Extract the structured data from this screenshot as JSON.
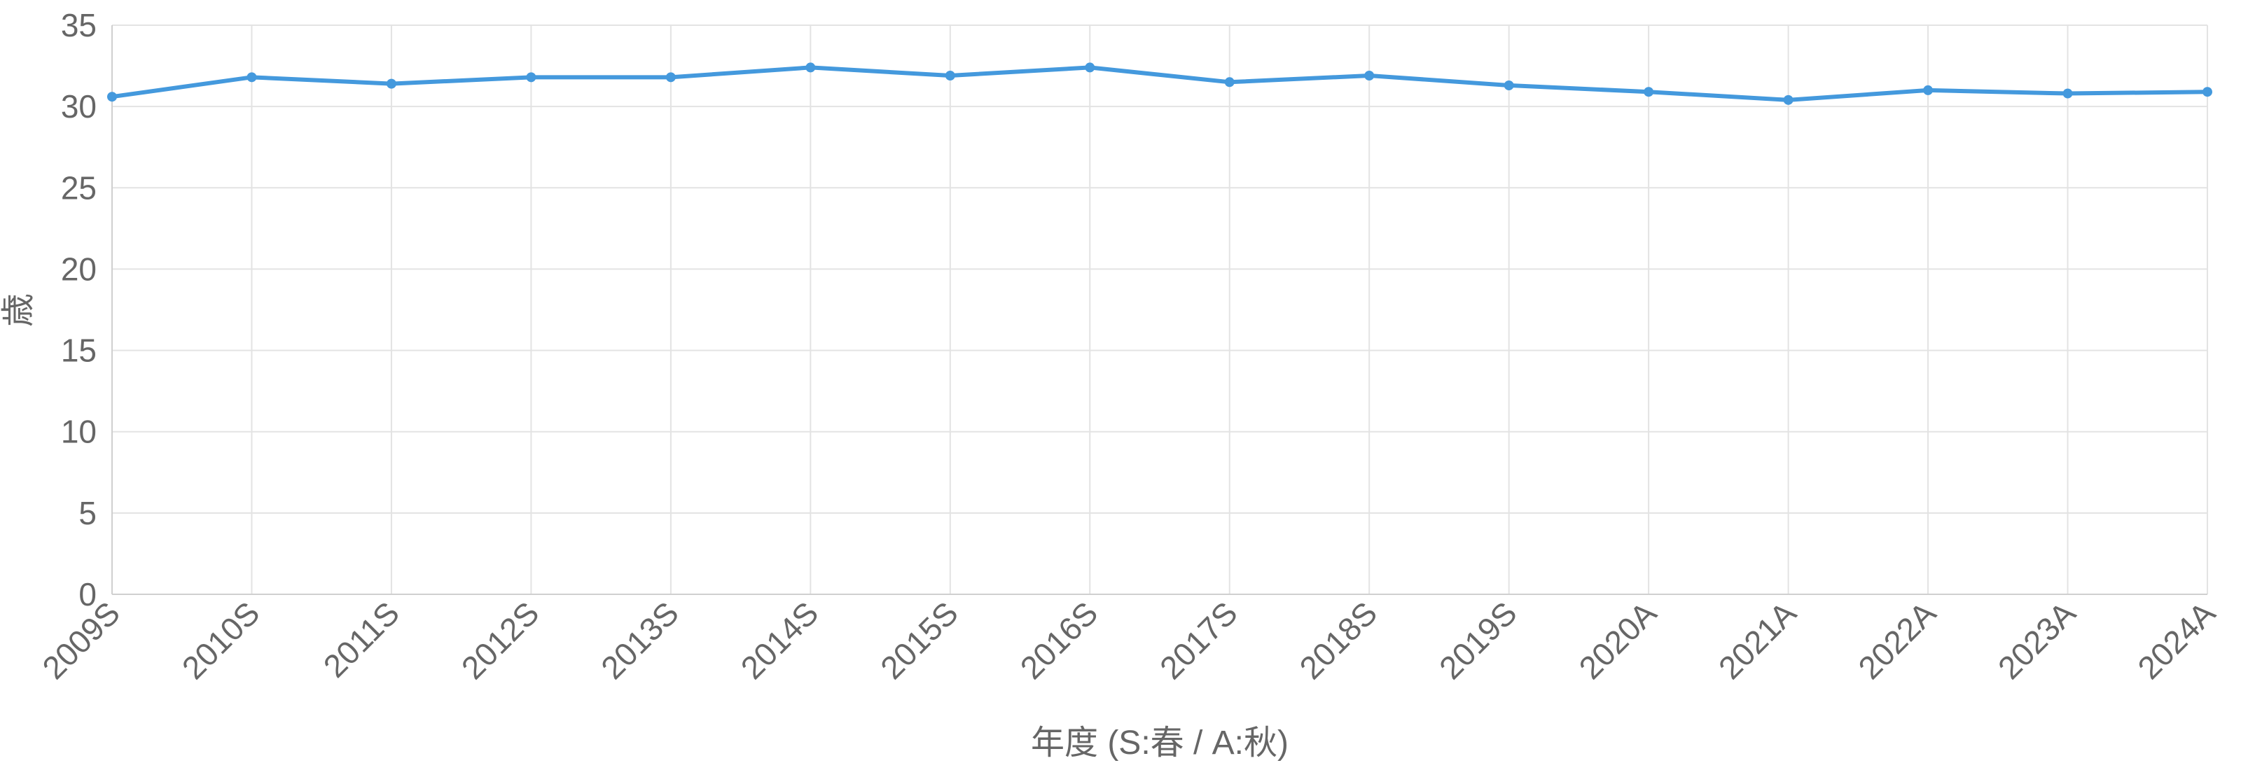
{
  "chart_data": {
    "type": "line",
    "title": "",
    "xlabel": "年度 (S:春 / A:秋)",
    "ylabel": "歳",
    "categories": [
      "2009S",
      "2010S",
      "2011S",
      "2012S",
      "2013S",
      "2014S",
      "2015S",
      "2016S",
      "2017S",
      "2018S",
      "2019S",
      "2020A",
      "2021A",
      "2022A",
      "2023A",
      "2024A"
    ],
    "series": [
      {
        "name": "",
        "values": [
          30.6,
          31.8,
          31.4,
          31.8,
          31.8,
          32.4,
          31.9,
          32.4,
          31.5,
          31.9,
          31.3,
          30.9,
          30.4,
          31.0,
          30.8,
          30.9
        ]
      }
    ],
    "ylim": [
      0,
      35
    ],
    "yticks": [
      0,
      5,
      10,
      15,
      20,
      25,
      30,
      35
    ],
    "grid": true,
    "legend": "none",
    "colors": {
      "series": "#4499dd",
      "grid": "#e3e3e3",
      "text": "#666666"
    }
  }
}
